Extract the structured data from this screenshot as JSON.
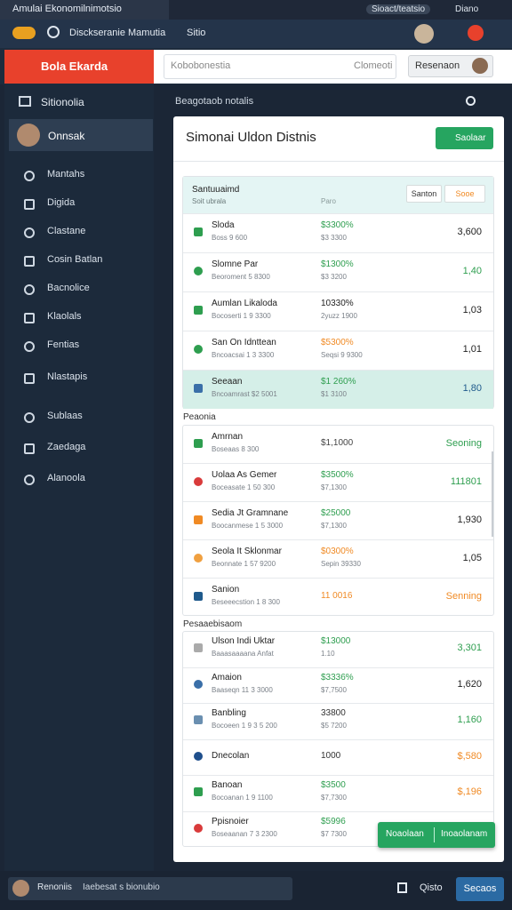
{
  "browser": {
    "tab_title": "Amulai Ekonomilnimotsio",
    "tab_right": "Sioact/teatsio",
    "tab_user": "Diano",
    "address": "Disckseranie Mamutia",
    "address_tab": "Sitio"
  },
  "header": {
    "menu_button": "Bola Ekarda",
    "search_placeholder": "Kobobonestia",
    "search_hint": "Clomeoti",
    "action_button": "Resenaon"
  },
  "sidebar": {
    "title": "Sitionolia",
    "user": "Onnsak",
    "nav": [
      "Mantahs",
      "Digida",
      "Clastane",
      "Cosin Batlan",
      "Bacnolice",
      "Klaolals",
      "Fentias",
      "Nlastapis",
      "Sublaas",
      "Zaedaga",
      "Alanoola"
    ]
  },
  "content": {
    "breadcrumb": "Beagotaob notalis",
    "card_title": "Simonai Uldon Distnis",
    "card_button": "Saolaar",
    "groups": [
      {
        "title": "Santuuaimd",
        "subtitle": "Soit ubrala",
        "column": "Paro",
        "buttons": [
          "Santon",
          "Sooe"
        ],
        "rows": [
          {
            "name": "Sloda",
            "detail": "Boss 9 600",
            "value": "$3300%",
            "subvalue": "$3 3300",
            "amount": "3,600",
            "icon_color": "#2e9e4f",
            "value_color": "#2e9e4f",
            "amount_color": "#222222"
          },
          {
            "name": "Slomne Par",
            "detail": "Beoroment 5 8300",
            "value": "$1300%",
            "subvalue": "$3 3200",
            "amount": "1,40",
            "icon_color": "#2e9e4f",
            "value_color": "#2e9e4f",
            "amount_color": "#2e9e4f"
          },
          {
            "name": "Aumlan Likaloda",
            "detail": "Bocoserti 1 9 3300",
            "value": "10330%",
            "subvalue": "2yuzz 1900",
            "amount": "1,03",
            "icon_color": "#2e9e4f",
            "value_color": "#222222",
            "amount_color": "#222222"
          },
          {
            "name": "San On Idnttean",
            "detail": "Bncoacsai 1 3 3300",
            "value": "$5300%",
            "subvalue": "Seqsi 9 9300",
            "amount": "1,01",
            "icon_color": "#2e9e4f",
            "value_color": "#f08a24",
            "amount_color": "#222222"
          },
          {
            "name": "Seeaan",
            "detail": "Bncoamrast $2 5001",
            "value": "$1 260%",
            "subvalue": "$1 3100",
            "amount": "1,80",
            "icon_color": "#3a6fa8",
            "value_color": "#2e9e4f",
            "amount_color": "#1f5a8c"
          }
        ]
      },
      {
        "label": "Peaonia",
        "rows": [
          {
            "name": "Amrnan",
            "detail": "Boseaas 8 300",
            "value": "$1,1000",
            "amount": "Seoning",
            "icon_color": "#2e9e4f",
            "value_color": "#444444",
            "amount_color": "#2e9e4f"
          },
          {
            "name": "Uolaa As Gemer",
            "detail": "Boceasate 1 50 300",
            "value": "$3500%",
            "subvalue": "$7,1300",
            "amount": "111801",
            "icon_color": "#d93b3b",
            "value_color": "#2e9e4f",
            "amount_color": "#2e9e4f"
          },
          {
            "name": "Sedia Jt Gramnane",
            "detail": "Boocanmese 1 5 3000",
            "value": "$25000",
            "subvalue": "$7,1300",
            "amount": "1,930",
            "icon_color": "#f08a24",
            "value_color": "#2e9e4f",
            "amount_color": "#222222"
          },
          {
            "name": "Seola It Sklonmar",
            "detail": "Beonnate 1 57 9200",
            "value": "$0300%",
            "subvalue": "Sepin 39330",
            "amount": "1,05",
            "icon_color": "#f0a040",
            "value_color": "#f08a24",
            "amount_color": "#222222"
          },
          {
            "name": "Sanion",
            "detail": "Beseeecstion 1 8 300",
            "value": "11 0016",
            "amount": "Senning",
            "icon_color": "#1f5a8c",
            "value_color": "#f08a24",
            "amount_color": "#f08a24"
          }
        ]
      },
      {
        "label": "Pesaaebisaom",
        "rows": [
          {
            "name": "Ulson Indi Uktar",
            "detail": "Baaasaaaana Anfat",
            "value": "$13000",
            "subvalue": "1.10",
            "amount": "3,301",
            "icon_color": "#aaaaaa",
            "value_color": "#2e9e4f",
            "amount_color": "#2e9e4f"
          },
          {
            "name": "Amaion",
            "detail": "Baaseqn 11 3 3000",
            "value": "$3336%",
            "subvalue": "$7,7500",
            "amount": "1,620",
            "icon_color": "#3a6fa8",
            "value_color": "#2e9e4f",
            "amount_color": "#222222"
          },
          {
            "name": "Banbling",
            "detail": "Bocoeen 1 9 3 5 200",
            "value": "33800",
            "subvalue": "$5 7200",
            "amount": "1,160",
            "icon_color": "#6a8fb0",
            "value_color": "#333333",
            "amount_color": "#2e9e4f"
          },
          {
            "name": "Dnecolan",
            "value": "1000",
            "amount": "$,580",
            "icon_color": "#1f4f8c",
            "value_color": "#333333",
            "amount_color": "#f08a24"
          },
          {
            "name": "Banoan",
            "detail": "Bocoanan 1 9 1100",
            "value": "$3500",
            "subvalue": "$7,7300",
            "amount": "$,196",
            "icon_color": "#2e9e4f",
            "value_color": "#2e9e4f",
            "amount_color": "#f08a24"
          },
          {
            "name": "Ppisnoier",
            "detail": "Boseaanan 7 3 2300",
            "value": "$5996",
            "subvalue": "$7 7300",
            "icon_color": "#d93b3b",
            "value_color": "#2e9e4f",
            "amount_color": "#222222"
          }
        ]
      }
    ]
  },
  "fab": {
    "left": "Noaolaan",
    "right": "Inoaolanam"
  },
  "footer": {
    "user": "Renoniis",
    "status": "Iaebesat s bionubio",
    "link": "Qisto",
    "button": "Secaos"
  }
}
